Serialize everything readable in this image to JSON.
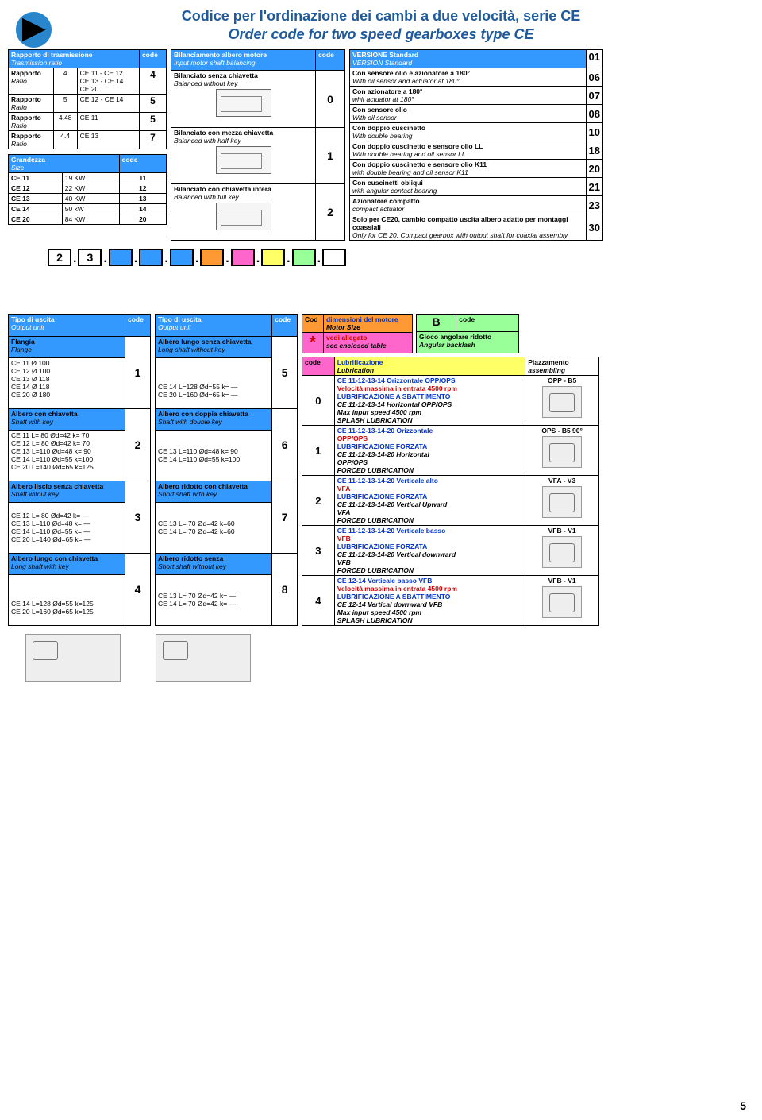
{
  "title_it": "Codice per l'ordinazione dei cambi a due velocità, serie CE",
  "title_en": "Order code for two speed gearboxes type CE",
  "t1": {
    "h_it": "Rapporto di trasmissione",
    "h_en": "Trasmission ratio",
    "hc": "code",
    "rows": [
      {
        "a": "Rapporto",
        "b": "Ratio",
        "c": "4",
        "d": "CE 11 - CE 12\nCE 13 - CE 14\nCE 20",
        "e": "4"
      },
      {
        "a": "Rapporto",
        "b": "Ratio",
        "c": "5",
        "d": "CE 12 - CE 14",
        "e": "5"
      },
      {
        "a": "Rapporto",
        "b": "Ratio",
        "c": "4.48",
        "d": "CE 11",
        "e": "5"
      },
      {
        "a": "Rapporto",
        "b": "Ratio",
        "c": "4.4",
        "d": "CE 13",
        "e": "7"
      }
    ]
  },
  "t2": {
    "h_it": "Grandezza",
    "h_en": "Size",
    "hc": "code",
    "rows": [
      {
        "a": "CE 11",
        "b": "19 KW",
        "c": "11"
      },
      {
        "a": "CE 12",
        "b": "22 KW",
        "c": "12"
      },
      {
        "a": "CE 13",
        "b": "40 KW",
        "c": "13"
      },
      {
        "a": "CE 14",
        "b": "50 kW",
        "c": "14"
      },
      {
        "a": "CE 20",
        "b": "84 KW",
        "c": "20"
      }
    ]
  },
  "t3": {
    "h_it": "Bilanciamento albero motore",
    "h_en": "Input motor shaft balancing",
    "hc": "code",
    "rows": [
      {
        "a_it": "Bilanciato senza chiavetta",
        "a_en": "Balanced without key",
        "c": "0"
      },
      {
        "a_it": "Bilanciato con mezza chiavetta",
        "a_en": "Balanced with half key",
        "c": "1"
      },
      {
        "a_it": "Bilanciato con chiavetta intera",
        "a_en": "Balanced with full key",
        "c": "2"
      }
    ]
  },
  "t4": {
    "h_it": "VERSIONE Standard",
    "h_en": "VERSION Standard",
    "code": "01",
    "rows": [
      {
        "it": "Con sensore olio e azionatore a 180°",
        "en": "With oil sensor and actuator at 180°",
        "c": "06"
      },
      {
        "it": "Con azionatore a 180°",
        "en": "whit actuator at 180°",
        "c": "07"
      },
      {
        "it": "Con sensore olio",
        "en": "With oil sensor",
        "c": "08"
      },
      {
        "it": "Con doppio cuscinetto",
        "en": "With double bearing",
        "c": "10"
      },
      {
        "it": "Con doppio cuscinetto e sensore olio LL",
        "en": "With double bearing and oil sensor LL",
        "c": "18"
      },
      {
        "it": "Con doppio cuscinetto e sensore olio K11",
        "en": "with double bearing and oil sensor K11",
        "c": "20"
      },
      {
        "it": "Con cuscinetti obliqui",
        "en": "with angular contact bearing",
        "c": "21"
      },
      {
        "it": "Azionatore compatto",
        "en": "compact actuator",
        "c": "23"
      },
      {
        "it": "Solo per CE20, cambio compatto uscita albero adatto per montaggi coassiali",
        "en": "Only for CE 20, Compact gearbox with output shaft for coaxial assembly",
        "c": "30"
      }
    ]
  },
  "strip": [
    "2",
    "3",
    "",
    "",
    "",
    "",
    "",
    "",
    "",
    ""
  ],
  "strip_colors": [
    "#fff",
    "#fff",
    "#3399ff",
    "#3399ff",
    "#3399ff",
    "#ff9933",
    "#ff66cc",
    "#ffff66",
    "#99ff99",
    "#fff"
  ],
  "t5": {
    "h_it": "Tipo di uscita",
    "h_en": "Output unit",
    "hc": "code",
    "rows": [
      {
        "tit_it": "Flangia",
        "tit_en": "Flange",
        "lines": [
          "CE 11 Ø 100",
          "CE 12 Ø 100",
          "CE 13 Ø 118",
          "CE 14 Ø 118",
          "CE 20 Ø 180"
        ],
        "c": "1"
      },
      {
        "tit_it": "Albero con chiavetta",
        "tit_en": "Shaft with key",
        "lines": [
          "CE 11 L= 80 Ød=42 k= 70",
          "CE 12 L= 80 Ød=42 k= 70",
          "CE 13 L=110 Ød=48 k= 90",
          "CE 14 L=110 Ød=55 k=100",
          "CE 20 L=140 Ød=65 k=125"
        ],
        "c": "2"
      },
      {
        "tit_it": "Albero liscio senza chiavetta",
        "tit_en": "Shaft witout key",
        "lines": [
          "",
          "CE 12 L= 80 Ød=42 k= —",
          "CE 13 L=110 Ød=48 k= —",
          "CE 14 L=110 Ød=55 k= —",
          "CE 20 L=140 Ød=65 k= —"
        ],
        "c": "3"
      },
      {
        "tit_it": "Albero lungo con chiavetta",
        "tit_en": "Long shaft with key",
        "lines": [
          "",
          "",
          "",
          "CE 14 L=128 Ød=55 k=125",
          "CE 20 L=160 Ød=65 k=125"
        ],
        "c": "4"
      }
    ]
  },
  "t6": {
    "h_it": "Tipo di uscita",
    "h_en": "Output unit",
    "hc": "code",
    "rows": [
      {
        "tit_it": "Albero lungo senza chiavetta",
        "tit_en": "Long shaft without key",
        "lines": [
          "",
          "",
          "",
          "CE 14 L=128 Ød=55 k= —",
          "CE 20 L=160 Ød=65 k= —"
        ],
        "c": "5"
      },
      {
        "tit_it": "Albero con doppia chiavetta",
        "tit_en": "Shaft with double key",
        "lines": [
          "",
          "",
          "CE 13 L=110 Ød=48 k= 90",
          "CE 14 L=110 Ød=55 k=100",
          ""
        ],
        "c": "6"
      },
      {
        "tit_it": "Albero ridotto con chiavetta",
        "tit_en": "Short shaft with key",
        "lines": [
          "",
          "",
          "CE 13 L= 70 Ød=42 k=60",
          "CE 14 L= 70 Ød=42 k=60",
          ""
        ],
        "c": "7"
      },
      {
        "tit_it": "Albero ridotto senza",
        "tit_en": "Short shaft without key",
        "lines": [
          "",
          "",
          "CE 13 L= 70 Ød=42 k= —",
          "CE 14 L= 70 Ød=42 k= —",
          ""
        ],
        "c": "8"
      }
    ]
  },
  "t7": {
    "h": "Cod",
    "h_it": "dimensioni del motore",
    "h_en": "Motor Size",
    "star": "*",
    "s_it": "vedi allegato",
    "s_en": "see enclosed table"
  },
  "t8": {
    "h": "B",
    "hc": "code",
    "h_it": "Gioco angolare ridotto",
    "h_en": "Angular backlash"
  },
  "t9": {
    "hc": "code",
    "h_it": "Lubrificazione",
    "h_en": "Lubrication",
    "h2_it": "Piazzamento",
    "h2_en": "assembling",
    "rows": [
      {
        "c": "0",
        "blue": "CE 11-12-13-14 Orizzontale OPP/OPS",
        "red": "Velocità massima in entrata 4500 rpm",
        "blue2": "LUBRIFICAZIONE A SBATTIMENTO",
        "en1": "CE 11-12-13-14 Horizontal OPP/OPS",
        "en2": "Max input speed 4500 rpm",
        "en3": "SPLASH LUBRICATION",
        "pos": "OPP - B5"
      },
      {
        "c": "1",
        "blue": "CE 11-12-13-14-20 Orizzontale",
        "red": "OPP/OPS",
        "blue2": "LUBRIFICAZIONE FORZATA",
        "en1": "CE 11-12-13-14-20 Horizontal",
        "en2": "OPP/OPS",
        "en3": "FORCED LUBRICATION",
        "pos": "OPS - B5 90°"
      },
      {
        "c": "2",
        "blue": "CE 11-12-13-14-20 Verticale alto",
        "red": "VFA",
        "blue2": "LUBRIFICAZIONE FORZATA",
        "en1": "CE 11-12-13-14-20 Vertical Upward",
        "en2": "VFA",
        "en3": "FORCED LUBRICATION",
        "pos": "VFA - V3"
      },
      {
        "c": "3",
        "blue": "CE 11-12-13-14-20 Verticale basso",
        "red": "VFB",
        "blue2": "LUBRIFICAZIONE FORZATA",
        "en1": "CE 11-12-13-14-20 Vertical downward",
        "en2": "VFB",
        "en3": "FORCED LUBRICATION",
        "pos": "VFB - V1"
      },
      {
        "c": "4",
        "blue": "CE 12-14 Verticale basso VFB",
        "red": "Velocità massima in entrata 4500 rpm",
        "blue2": "LUBRIFICAZIONE A SBATTIMENTO",
        "en1": "CE 12-14 Vertical downward VFB",
        "en2": "Max input speed 4500 rpm",
        "en3": "SPLASH LUBRICATION",
        "pos": "VFB - V1"
      }
    ]
  },
  "page": "5"
}
